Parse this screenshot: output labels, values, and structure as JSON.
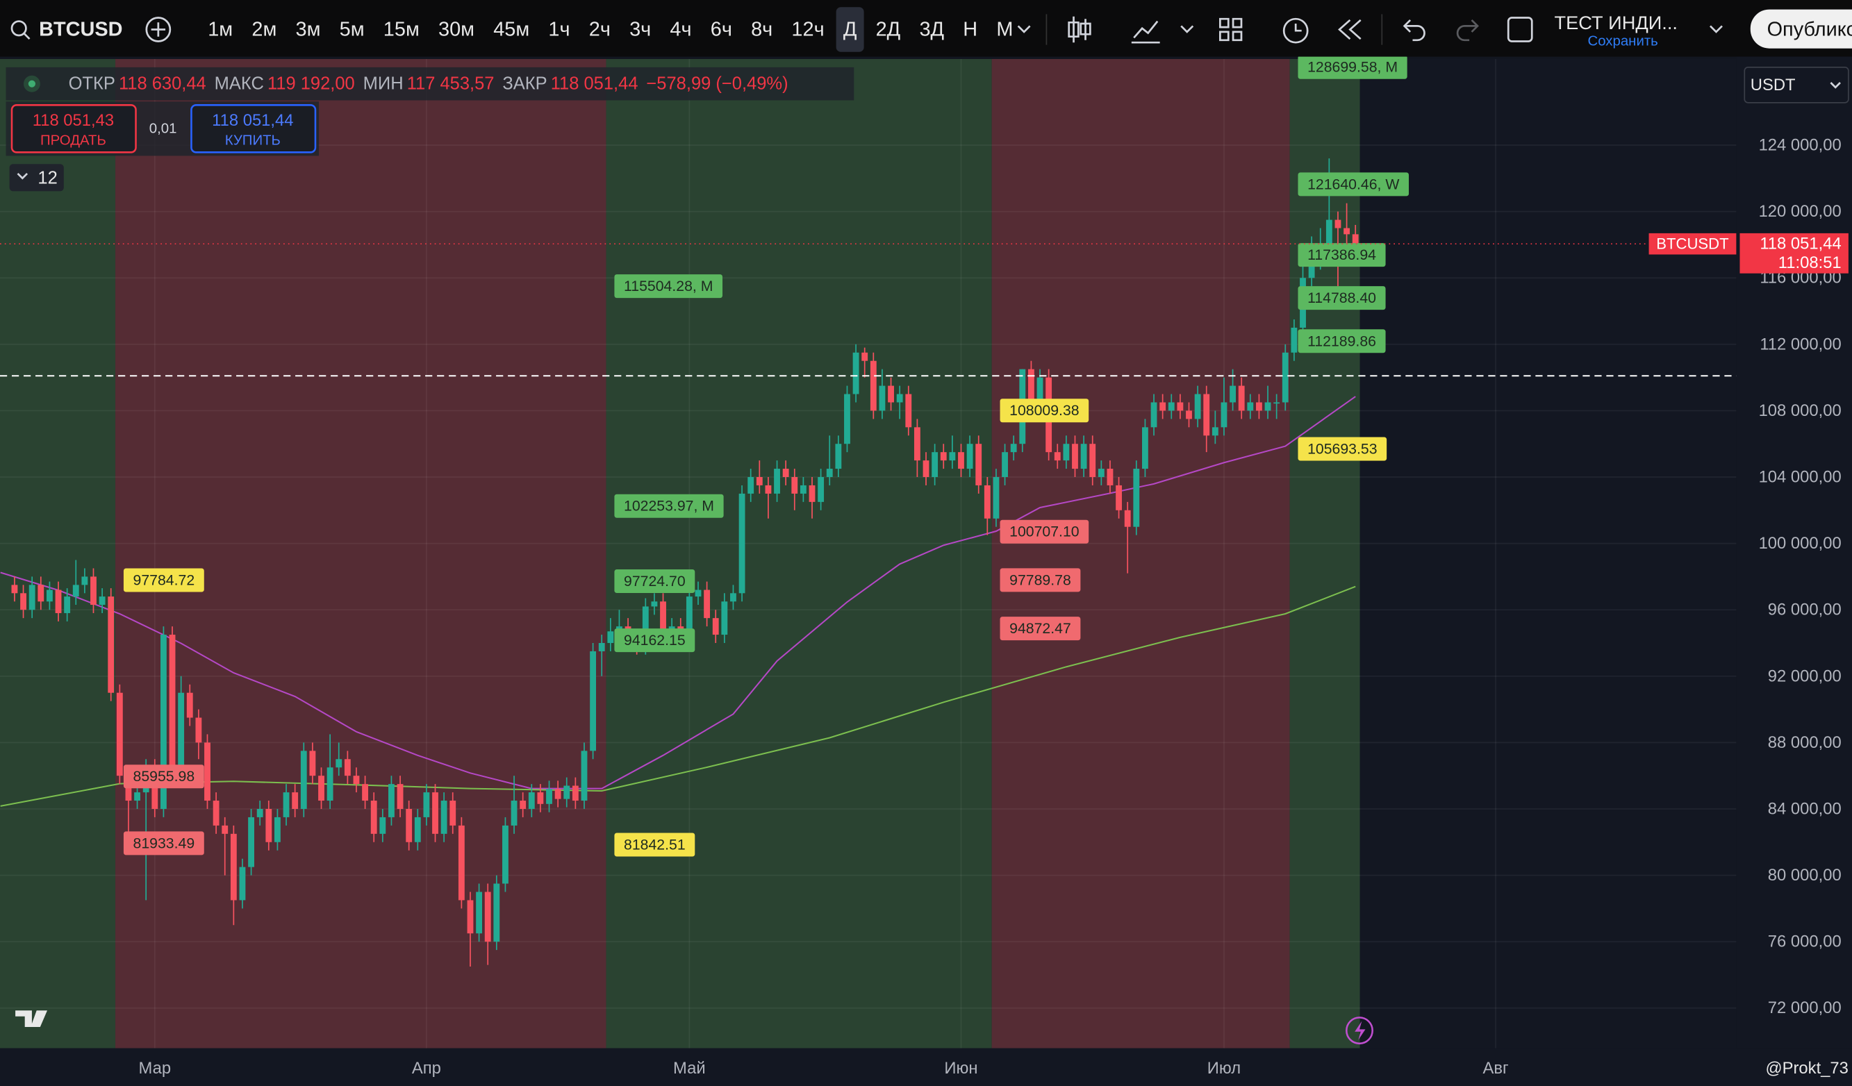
{
  "toolbar": {
    "symbol": "BTCUSD",
    "intervals": [
      "1м",
      "2м",
      "3м",
      "5м",
      "15м",
      "30м",
      "45м",
      "1ч",
      "2ч",
      "3ч",
      "4ч",
      "6ч",
      "8ч",
      "12ч",
      "Д",
      "2Д",
      "3Д",
      "Н",
      "М"
    ],
    "selected_interval": 14,
    "layout_name": "ТЕСТ ИНДИ...",
    "save": "Сохранить",
    "publish": "Опубликовать"
  },
  "legend": {
    "pairs": [
      [
        "ОТКР",
        "118 630,44"
      ],
      [
        "МАКС",
        "119 192,00"
      ],
      [
        "МИН",
        "117 453,57"
      ],
      [
        "ЗАКР",
        "118 051,44"
      ]
    ],
    "change": "−578,99 (−0,49%)"
  },
  "trade": {
    "sell_price": "118 051,43",
    "sell": "ПРОДАТЬ",
    "quantity": "0,01",
    "buy_price": "118 051,44",
    "buy": "КУПИТЬ"
  },
  "indicators_count": "12",
  "currency": "USDT",
  "footer": {
    "author": "@Prokt_73"
  },
  "chart_data": {
    "type": "candlestick",
    "up_color": "#22ab94",
    "down_color": "#f7525f",
    "xlim": [
      -1.66,
      196.45
    ],
    "xticks": [
      {
        "value": 16,
        "label": "Мар"
      },
      {
        "value": 47,
        "label": "Апр"
      },
      {
        "value": 77,
        "label": "Май"
      },
      {
        "value": 108,
        "label": "Июн"
      },
      {
        "value": 138,
        "label": "Июл"
      },
      {
        "value": 169,
        "label": "Авг"
      }
    ],
    "ylim": [
      69580,
      129190
    ],
    "yticks": [
      {
        "value": 72000,
        "label": "72 000,00"
      },
      {
        "value": 76000,
        "label": "76 000,00"
      },
      {
        "value": 80000,
        "label": "80 000,00"
      },
      {
        "value": 84000,
        "label": "84 000,00"
      },
      {
        "value": 88000,
        "label": "88 000,00"
      },
      {
        "value": 92000,
        "label": "92 000,00"
      },
      {
        "value": 96000,
        "label": "96 000,00"
      },
      {
        "value": 100000,
        "label": "100 000,00"
      },
      {
        "value": 104000,
        "label": "104 000,00"
      },
      {
        "value": 108000,
        "label": "108 000,00"
      },
      {
        "value": 112000,
        "label": "112 000,00"
      },
      {
        "value": 116000,
        "label": "116 000,00"
      },
      {
        "value": 120000,
        "label": "120 000,00"
      },
      {
        "value": 124000,
        "label": "124 000,00"
      }
    ],
    "grid": true,
    "open": [
      97500,
      97000,
      96000,
      97500,
      96500,
      97200,
      95800,
      96800,
      97500,
      98000,
      96300,
      96800,
      91000,
      86000,
      84500,
      85000,
      86500,
      84000,
      94500,
      86000,
      91000,
      89500,
      88000,
      84500,
      83000,
      82500,
      78500,
      80500,
      83500,
      84000,
      82000,
      83500,
      85000,
      84000,
      87500,
      86000,
      84500,
      86500,
      87000,
      86000,
      85500,
      84500,
      82500,
      83500,
      85500,
      84000,
      82000,
      83500,
      85000,
      82500,
      84500,
      83000,
      78500,
      76500,
      79000,
      76000,
      79500,
      83000,
      84500,
      84000,
      85000,
      84300,
      85200,
      84600,
      85400,
      84500,
      87500,
      93500,
      94000,
      94700,
      95000,
      94200,
      93800,
      96200,
      96500,
      94600,
      95000,
      94200,
      96800,
      97200,
      95500,
      94500,
      96500,
      97000,
      103000,
      104000,
      103500,
      103000,
      104500,
      104000,
      103000,
      103500,
      102500,
      104000,
      104500,
      106000,
      109000,
      111500,
      111000,
      108000,
      109500,
      108500,
      109000,
      107000,
      105000,
      104000,
      105500,
      105000,
      105500,
      104500,
      106000,
      103500,
      101500,
      104000,
      105500,
      106000,
      110500,
      108000,
      110000,
      105500,
      105000,
      106000,
      104500,
      106000,
      104000,
      104500,
      103500,
      102000,
      101000,
      104500,
      107000,
      108500,
      108000,
      108500,
      108000,
      107500,
      109000,
      106500,
      107000,
      108500,
      109500,
      108000,
      108500,
      108000,
      108500,
      108500,
      111500,
      113000,
      116000,
      117500,
      117500,
      119500,
      119000,
      118630.44
    ],
    "high": [
      98000,
      97500,
      98000,
      98000,
      97700,
      97700,
      97300,
      99000,
      98500,
      98500,
      97300,
      97300,
      91500,
      86500,
      86000,
      87000,
      87000,
      95000,
      95000,
      92000,
      91500,
      90000,
      88500,
      85000,
      83500,
      83000,
      81000,
      84000,
      84500,
      84500,
      84000,
      85500,
      85500,
      88000,
      88000,
      86500,
      88500,
      88000,
      87500,
      86500,
      86000,
      85000,
      84000,
      86000,
      86000,
      84500,
      84000,
      85500,
      85500,
      85000,
      85000,
      83500,
      79000,
      79500,
      79500,
      80000,
      83500,
      86000,
      85000,
      85500,
      85500,
      85700,
      85700,
      85900,
      85900,
      88000,
      94000,
      94500,
      95500,
      96000,
      95500,
      94700,
      96700,
      97000,
      97000,
      95500,
      95500,
      97300,
      97700,
      97700,
      96000,
      97000,
      97500,
      103500,
      104500,
      105000,
      104000,
      105000,
      105000,
      104500,
      104000,
      104000,
      104500,
      106500,
      106500,
      109500,
      112000,
      111800,
      111500,
      110500,
      110000,
      109500,
      109500,
      107500,
      105500,
      106000,
      106000,
      106500,
      106000,
      106500,
      106500,
      104000,
      104500,
      106000,
      106500,
      110500,
      111000,
      110500,
      110500,
      106000,
      106500,
      106500,
      106500,
      106500,
      105000,
      105000,
      104000,
      102500,
      105000,
      107500,
      109000,
      109000,
      109000,
      109000,
      108500,
      109500,
      109500,
      108000,
      110000,
      110500,
      110000,
      109000,
      109000,
      109500,
      109000,
      112000,
      113500,
      118000,
      118500,
      119000,
      123200,
      120000,
      120500,
      119192
    ],
    "low": [
      96500,
      95500,
      95500,
      96000,
      96000,
      95300,
      95300,
      96300,
      97000,
      95800,
      95800,
      90500,
      85500,
      82000,
      84000,
      78500,
      83500,
      83500,
      85500,
      85500,
      89000,
      87000,
      84000,
      82500,
      80000,
      77000,
      78000,
      80000,
      83000,
      81500,
      81500,
      83000,
      83500,
      83500,
      85500,
      84000,
      84000,
      86000,
      85500,
      85000,
      84000,
      82000,
      82000,
      83000,
      83500,
      81500,
      81500,
      83000,
      82000,
      82000,
      82500,
      78000,
      74500,
      76000,
      74600,
      75500,
      79000,
      82500,
      83500,
      83500,
      83800,
      83800,
      84100,
      84100,
      84000,
      84000,
      87000,
      92000,
      93500,
      94200,
      93700,
      93300,
      93300,
      95700,
      94100,
      94100,
      93700,
      93700,
      96300,
      95000,
      94000,
      94000,
      96000,
      96500,
      102500,
      103000,
      101500,
      102500,
      103500,
      102000,
      102500,
      101500,
      102000,
      103500,
      104000,
      105500,
      108500,
      110000,
      107500,
      107500,
      108000,
      107500,
      106500,
      104000,
      103500,
      103500,
      104500,
      104500,
      104000,
      104000,
      103000,
      100500,
      101000,
      103500,
      105000,
      105500,
      107500,
      107500,
      105000,
      104500,
      104500,
      104000,
      104000,
      103500,
      103500,
      103000,
      101500,
      98200,
      100500,
      104000,
      106500,
      107500,
      107500,
      107500,
      107000,
      107000,
      105500,
      106000,
      106500,
      108000,
      107500,
      107500,
      107500,
      107500,
      107500,
      108000,
      111000,
      112500,
      115500,
      116500,
      117000,
      115500,
      117500,
      117453.57
    ],
    "close": [
      97000,
      96000,
      97500,
      96500,
      97200,
      95800,
      96800,
      97500,
      98000,
      96300,
      96800,
      91000,
      86000,
      84500,
      85000,
      86500,
      84000,
      94500,
      86000,
      91000,
      89500,
      88000,
      84500,
      83000,
      82500,
      78500,
      80500,
      83500,
      84000,
      82000,
      83500,
      85000,
      84000,
      87500,
      86000,
      84500,
      86500,
      87000,
      86000,
      85500,
      84500,
      82500,
      83500,
      85500,
      84000,
      82000,
      83500,
      85000,
      82500,
      84500,
      83000,
      78500,
      76500,
      79000,
      76000,
      79500,
      83000,
      84500,
      84000,
      85000,
      84300,
      85200,
      84600,
      85400,
      84500,
      87500,
      93500,
      94000,
      94700,
      95000,
      94200,
      93800,
      96200,
      96500,
      94600,
      95000,
      94200,
      96800,
      97200,
      95500,
      94500,
      96500,
      97000,
      103000,
      104000,
      103500,
      103000,
      104500,
      104000,
      103000,
      103500,
      102500,
      104000,
      104500,
      106000,
      109000,
      111500,
      111000,
      108000,
      109500,
      108500,
      109000,
      107000,
      105000,
      104000,
      105500,
      105000,
      105500,
      104500,
      106000,
      103500,
      101500,
      104000,
      105500,
      106000,
      110500,
      108000,
      110000,
      105500,
      105000,
      106000,
      104500,
      106000,
      104000,
      104500,
      103500,
      102000,
      101000,
      104500,
      107000,
      108500,
      108000,
      108500,
      108000,
      107500,
      109000,
      106500,
      107000,
      108500,
      109500,
      108000,
      108500,
      108000,
      108500,
      108500,
      111500,
      113000,
      116000,
      117500,
      117500,
      119500,
      119000,
      118630.44,
      118051.44
    ],
    "lines": [
      {
        "color": "#b548c6",
        "x": [
          -1.6,
          5,
          12,
          19,
          25,
          32,
          39,
          46,
          52,
          59,
          67,
          74,
          82,
          87,
          95,
          101,
          106,
          112,
          117,
          125,
          130,
          138,
          145,
          153
        ],
        "values": [
          98250,
          97180,
          95760,
          93980,
          92200,
          90780,
          88650,
          87230,
          86160,
          85230,
          85230,
          87230,
          89720,
          92920,
          96470,
          98750,
          99890,
          100740,
          102160,
          103020,
          103590,
          104870,
          105860,
          108850
        ]
      },
      {
        "color": "#7cbf4f",
        "x": [
          -1.6,
          12,
          25,
          39,
          52,
          67,
          79,
          93,
          106,
          120,
          133,
          145,
          153
        ],
        "values": [
          84170,
          85520,
          85660,
          85450,
          85230,
          85090,
          86510,
          88290,
          90430,
          92560,
          94340,
          95760,
          97400
        ]
      }
    ],
    "bands": [
      {
        "from": -1.66,
        "to": 11.5,
        "color": "#2a4331",
        "levels": []
      },
      {
        "from": 11.5,
        "to": 67.5,
        "color": "#552c34",
        "levels": [
          {
            "value": 97784.72,
            "label": "97784.72",
            "color": "#f5e34a"
          },
          {
            "value": 85955.98,
            "label": "85955.98",
            "color": "#f06a6f"
          },
          {
            "value": 81933.49,
            "label": "81933.49",
            "color": "#f06a6f"
          }
        ]
      },
      {
        "from": 67.5,
        "to": 111.5,
        "color": "#2a4331",
        "levels": [
          {
            "value": 115504.28,
            "label": "115504.28, M",
            "color": "#5cb860"
          },
          {
            "value": 102253.97,
            "label": "102253.97, M",
            "color": "#5cb860"
          },
          {
            "value": 97724.7,
            "label": "97724.70",
            "color": "#5cb860"
          },
          {
            "value": 94162.15,
            "label": "94162.15",
            "color": "#5cb860"
          },
          {
            "value": 81842.51,
            "label": "81842.51",
            "color": "#f5e34a"
          }
        ]
      },
      {
        "from": 111.5,
        "to": 145.5,
        "color": "#552c34",
        "levels": [
          {
            "value": 108009.38,
            "label": "108009.38",
            "color": "#f5e34a"
          },
          {
            "value": 100707.1,
            "label": "100707.10",
            "color": "#f06a6f"
          },
          {
            "value": 97789.78,
            "label": "97789.78",
            "color": "#f06a6f"
          },
          {
            "value": 94872.47,
            "label": "94872.47",
            "color": "#f06a6f"
          }
        ]
      },
      {
        "from": 145.5,
        "to": 153.5,
        "color": "#2a4331",
        "levels": [
          {
            "value": 128699.58,
            "label": "128699.58, M",
            "color": "#5cb860"
          },
          {
            "value": 121640.46,
            "label": "121640.46, W",
            "color": "#5cb860"
          },
          {
            "value": 117386.94,
            "label": "117386.94",
            "color": "#5cb860"
          },
          {
            "value": 114788.4,
            "label": "114788.40",
            "color": "#5cb860"
          },
          {
            "value": 112189.86,
            "label": "112189.86",
            "color": "#5cb860"
          },
          {
            "value": 105693.53,
            "label": "105693.53",
            "color": "#f5e34a"
          }
        ]
      }
    ],
    "hline": 110100,
    "last_price": {
      "value": 118051.44,
      "label": "118 051,44"
    },
    "symbol_tag": "BTCUSDT",
    "countdown": "11:08:51"
  }
}
